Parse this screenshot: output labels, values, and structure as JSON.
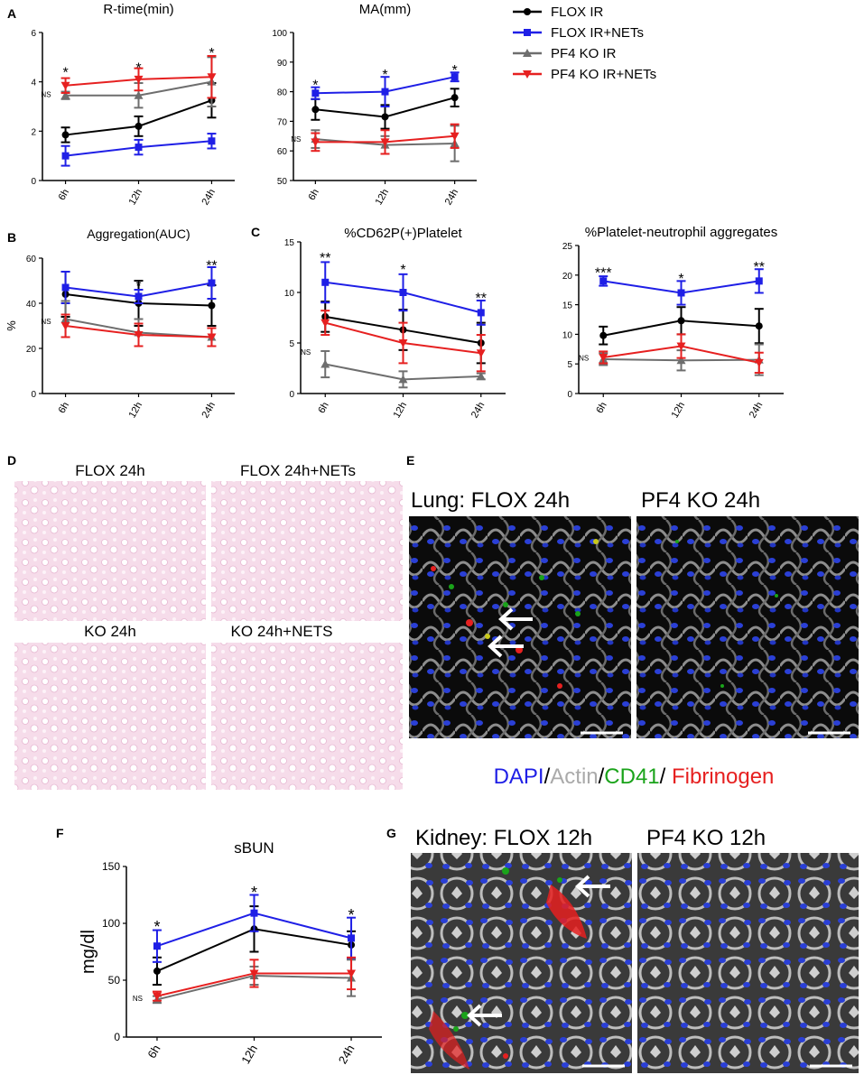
{
  "colors": {
    "flox_ir": "#000000",
    "flox_nets": "#1f1fe6",
    "ko_ir": "#6e6e6e",
    "ko_nets": "#e62020"
  },
  "legend": {
    "items": [
      {
        "label": "FLOX IR",
        "color": "#000000",
        "marker": "circle"
      },
      {
        "label": "FLOX IR+NETs",
        "color": "#1f1fe6",
        "marker": "square"
      },
      {
        "label": "PF4 KO IR",
        "color": "#6e6e6e",
        "marker": "triangle-up"
      },
      {
        "label": "PF4 KO IR+NETs",
        "color": "#e62020",
        "marker": "triangle-down"
      }
    ]
  },
  "chart_data": [
    {
      "id": "rtime",
      "type": "line",
      "panel": "A",
      "title": "R-time(min)",
      "ylabel": "",
      "ylim": [
        0,
        6
      ],
      "yticks": [
        0,
        2,
        4,
        6
      ],
      "categories": [
        "6h",
        "12h",
        "24h"
      ],
      "series": [
        {
          "values": [
            1.85,
            2.2,
            3.25
          ],
          "err": [
            0.3,
            0.4,
            0.7
          ],
          "color": "#000000",
          "marker": "circle"
        },
        {
          "values": [
            1.0,
            1.35,
            1.6
          ],
          "err": [
            0.4,
            0.3,
            0.3
          ],
          "color": "#1f1fe6",
          "marker": "square"
        },
        {
          "values": [
            3.45,
            3.45,
            4.0
          ],
          "err": [
            0.15,
            0.5,
            1.0
          ],
          "color": "#6e6e6e",
          "marker": "triangle-up"
        },
        {
          "values": [
            3.85,
            4.1,
            4.2
          ],
          "err": [
            0.3,
            0.45,
            0.85
          ],
          "color": "#e62020",
          "marker": "triangle-down"
        }
      ],
      "annotations": [
        {
          "text": "*",
          "x": "6h",
          "y": 4.4
        },
        {
          "text": "*",
          "x": "12h",
          "y": 4.6
        },
        {
          "text": "*",
          "x": "24h",
          "y": 5.2
        },
        {
          "text": "NS",
          "x": "6h",
          "y": 3.5,
          "side": "left"
        }
      ]
    },
    {
      "id": "ma",
      "type": "line",
      "panel": "",
      "title": "MA(mm)",
      "ylabel": "",
      "ylim": [
        50,
        100
      ],
      "yticks": [
        50,
        60,
        70,
        80,
        90,
        100
      ],
      "categories": [
        "6h",
        "12h",
        "24h"
      ],
      "series": [
        {
          "values": [
            74,
            71.5,
            78
          ],
          "err": [
            3.5,
            4,
            3
          ],
          "color": "#000000",
          "marker": "circle"
        },
        {
          "values": [
            79.5,
            80,
            85
          ],
          "err": [
            2,
            5,
            1.5
          ],
          "color": "#1f1fe6",
          "marker": "square"
        },
        {
          "values": [
            64,
            62,
            62.5
          ],
          "err": [
            3,
            3,
            6
          ],
          "color": "#6e6e6e",
          "marker": "triangle-up"
        },
        {
          "values": [
            63,
            63,
            65
          ],
          "err": [
            3,
            4,
            4
          ],
          "color": "#e62020",
          "marker": "triangle-down"
        }
      ],
      "annotations": [
        {
          "text": "*",
          "x": "6h",
          "y": 82.5
        },
        {
          "text": "*",
          "x": "12h",
          "y": 86
        },
        {
          "text": "*",
          "x": "24h",
          "y": 87.5
        },
        {
          "text": "NS",
          "x": "6h",
          "y": 64,
          "side": "left"
        }
      ]
    },
    {
      "id": "agg",
      "type": "line",
      "panel": "B",
      "title": "Aggregation(AUC)",
      "ylabel": "%",
      "ylim": [
        0,
        60
      ],
      "yticks": [
        0,
        20,
        40,
        60
      ],
      "categories": [
        "6h",
        "12h",
        "24h"
      ],
      "series": [
        {
          "values": [
            44,
            40,
            39
          ],
          "err": [
            10,
            10,
            9
          ],
          "color": "#000000",
          "marker": "circle"
        },
        {
          "values": [
            47,
            43,
            49
          ],
          "err": [
            7,
            3,
            7
          ],
          "color": "#1f1fe6",
          "marker": "square"
        },
        {
          "values": [
            33,
            27,
            25
          ],
          "err": [
            8,
            6,
            4
          ],
          "color": "#6e6e6e",
          "marker": "triangle-up"
        },
        {
          "values": [
            30,
            26,
            25
          ],
          "err": [
            5,
            5,
            4
          ],
          "color": "#e62020",
          "marker": "triangle-down"
        }
      ],
      "annotations": [
        {
          "text": "*",
          "x": "12h",
          "y": 48
        },
        {
          "text": "**",
          "x": "24h",
          "y": 57
        },
        {
          "text": "NS",
          "x": "6h",
          "y": 32,
          "side": "left"
        }
      ]
    },
    {
      "id": "cd62p",
      "type": "line",
      "panel": "C",
      "title": "%CD62P(+)Platelet",
      "ylabel": "",
      "ylim": [
        0,
        15
      ],
      "yticks": [
        0,
        5,
        10,
        15
      ],
      "categories": [
        "6h",
        "12h",
        "24h"
      ],
      "series": [
        {
          "values": [
            7.6,
            6.3,
            5.0
          ],
          "err": [
            1.5,
            2.0,
            2.0
          ],
          "color": "#000000",
          "marker": "circle"
        },
        {
          "values": [
            11,
            10,
            8
          ],
          "err": [
            2,
            1.8,
            1.2
          ],
          "color": "#1f1fe6",
          "marker": "square"
        },
        {
          "values": [
            2.9,
            1.4,
            1.7
          ],
          "err": [
            1.3,
            0.8,
            0.3
          ],
          "color": "#6e6e6e",
          "marker": "triangle-up"
        },
        {
          "values": [
            7.0,
            5.0,
            4.0
          ],
          "err": [
            1.2,
            2.0,
            1.8
          ],
          "color": "#e62020",
          "marker": "triangle-down"
        }
      ],
      "annotations": [
        {
          "text": "**",
          "x": "6h",
          "y": 13.5
        },
        {
          "text": "*",
          "x": "12h",
          "y": 12.3
        },
        {
          "text": "**",
          "x": "24h",
          "y": 9.5
        },
        {
          "text": "NS",
          "x": "6h",
          "y": 4.1,
          "side": "left"
        }
      ]
    },
    {
      "id": "pna",
      "type": "line",
      "panel": "",
      "title": "%Platelet-neutrophil aggregates",
      "ylabel": "",
      "ylim": [
        0,
        25
      ],
      "yticks": [
        0,
        5,
        10,
        15,
        20,
        25
      ],
      "categories": [
        "6h",
        "12h",
        "24h"
      ],
      "series": [
        {
          "values": [
            9.8,
            12.3,
            11.4
          ],
          "err": [
            1.5,
            2.3,
            2.9
          ],
          "color": "#000000",
          "marker": "circle"
        },
        {
          "values": [
            19,
            17,
            19
          ],
          "err": [
            0.8,
            2.0,
            2.0
          ],
          "color": "#1f1fe6",
          "marker": "square"
        },
        {
          "values": [
            5.8,
            5.6,
            5.7
          ],
          "err": [
            1.0,
            1.7,
            2.6
          ],
          "color": "#6e6e6e",
          "marker": "triangle-up"
        },
        {
          "values": [
            6.1,
            8.0,
            5.2
          ],
          "err": [
            1.0,
            2.0,
            1.7
          ],
          "color": "#e62020",
          "marker": "triangle-down"
        }
      ],
      "annotations": [
        {
          "text": "***",
          "x": "6h",
          "y": 20.5
        },
        {
          "text": "*",
          "x": "12h",
          "y": 19.5
        },
        {
          "text": "**",
          "x": "24h",
          "y": 21.5
        },
        {
          "text": "NS",
          "x": "6h",
          "y": 6.0,
          "side": "left"
        }
      ]
    },
    {
      "id": "sbun",
      "type": "line",
      "panel": "F",
      "title": "sBUN",
      "ylabel": "mg/dl",
      "ylim": [
        0,
        150
      ],
      "yticks": [
        0,
        50,
        100,
        150
      ],
      "categories": [
        "6h",
        "12h",
        "24h"
      ],
      "series": [
        {
          "values": [
            58,
            95,
            81
          ],
          "err": [
            12,
            20,
            12
          ],
          "color": "#000000",
          "marker": "circle"
        },
        {
          "values": [
            80,
            109,
            87
          ],
          "err": [
            14,
            16,
            18
          ],
          "color": "#1f1fe6",
          "marker": "square"
        },
        {
          "values": [
            33,
            54,
            52
          ],
          "err": [
            3,
            8,
            16
          ],
          "color": "#6e6e6e",
          "marker": "triangle-up"
        },
        {
          "values": [
            36,
            56,
            56
          ],
          "err": [
            4,
            12,
            14
          ],
          "color": "#e62020",
          "marker": "triangle-down"
        }
      ],
      "annotations": [
        {
          "text": "*",
          "x": "6h",
          "y": 97
        },
        {
          "text": "*",
          "x": "12h",
          "y": 127
        },
        {
          "text": "*",
          "x": "24h",
          "y": 107
        },
        {
          "text": "NS",
          "x": "6h",
          "y": 34,
          "side": "left"
        }
      ]
    }
  ],
  "histology": {
    "panel": "D",
    "tiles": [
      {
        "label": "FLOX 24h"
      },
      {
        "label": "FLOX 24h+NETs"
      },
      {
        "label": "KO 24h"
      },
      {
        "label": "KO 24h+NETS"
      }
    ]
  },
  "lung": {
    "panel": "E",
    "left_title": "Lung: FLOX 24h",
    "right_title": "PF4 KO 24h"
  },
  "stain_legend": [
    {
      "text": "DAPI",
      "color": "#1f1fe6"
    },
    {
      "text": "/",
      "color": "#000000"
    },
    {
      "text": "Actin",
      "color": "#aaaaaa"
    },
    {
      "text": "/",
      "color": "#000000"
    },
    {
      "text": "CD41",
      "color": "#1aa31a"
    },
    {
      "text": "/ ",
      "color": "#000000"
    },
    {
      "text": "Fibrinogen",
      "color": "#e62020"
    }
  ],
  "kidney": {
    "panel": "G",
    "left_title": "Kidney:  FLOX 12h",
    "right_title": "PF4 KO 12h"
  }
}
